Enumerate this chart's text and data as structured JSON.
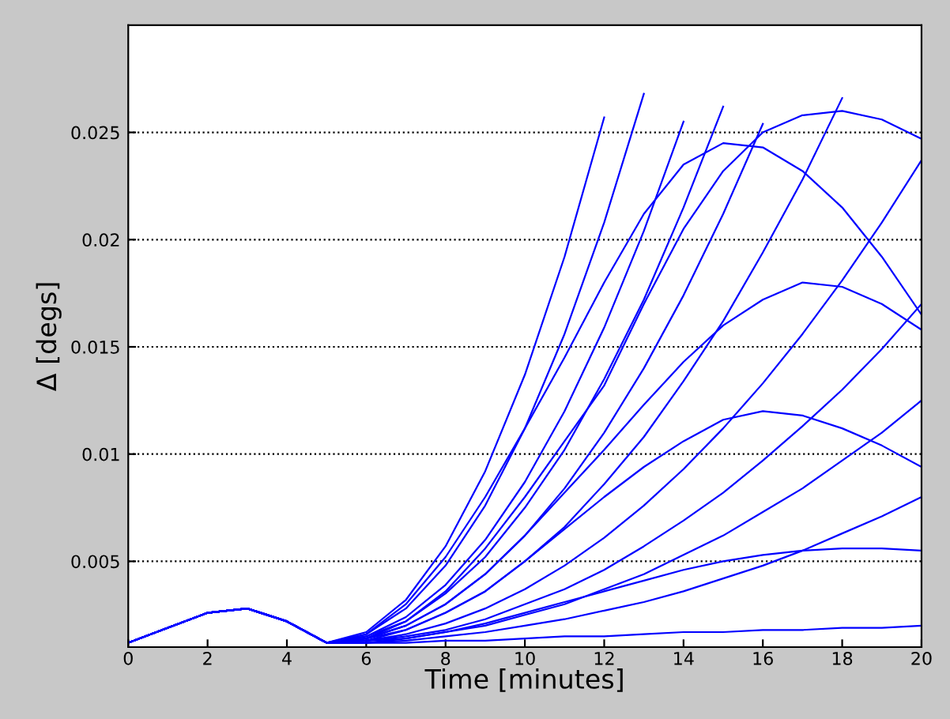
{
  "chart_data": {
    "type": "line",
    "xlabel": "Time [minutes]",
    "ylabel": "Δ [degs]",
    "x": [
      0,
      1,
      2,
      3,
      4,
      5,
      6,
      7,
      8,
      9,
      10,
      11,
      12,
      13,
      14,
      15,
      16,
      17,
      18,
      19,
      20
    ],
    "xlim": [
      0,
      20
    ],
    "xticks": [
      0,
      2,
      4,
      6,
      8,
      10,
      12,
      14,
      16,
      18,
      20
    ],
    "ylim": [
      0.001,
      0.03
    ],
    "yticks": [
      0.005,
      0.01,
      0.015,
      0.02,
      0.025
    ],
    "grid": "y",
    "legend": false,
    "marker": "none",
    "line_style": "solid",
    "series": [
      {
        "color": "#0000ff",
        "values": [
          0.0012,
          0.0019,
          0.0026,
          0.0028,
          0.0022,
          0.0012,
          0.0017,
          0.0032,
          0.0057,
          0.0092,
          0.0137,
          0.0192,
          0.0257,
          null,
          null,
          null,
          null,
          null,
          null,
          null,
          null
        ]
      },
      {
        "color": "#0000ff",
        "values": [
          0.0012,
          0.0019,
          0.0026,
          0.0028,
          0.0022,
          0.0012,
          0.0016,
          0.0028,
          0.0048,
          0.0076,
          0.0112,
          0.0156,
          0.0208,
          0.0268,
          null,
          null,
          null,
          null,
          null,
          null,
          null
        ]
      },
      {
        "color": "#0000ff",
        "values": [
          0.0012,
          0.0019,
          0.0026,
          0.0028,
          0.0022,
          0.0012,
          0.0015,
          0.0024,
          0.0039,
          0.006,
          0.0087,
          0.012,
          0.0159,
          0.0204,
          0.0255,
          null,
          null,
          null,
          null,
          null,
          null
        ]
      },
      {
        "color": "#0000ff",
        "values": [
          0.0012,
          0.0019,
          0.0026,
          0.0028,
          0.0022,
          0.0012,
          0.0015,
          0.0022,
          0.0035,
          0.0052,
          0.0075,
          0.0102,
          0.0135,
          0.0172,
          0.0215,
          0.0262,
          null,
          null,
          null,
          null,
          null
        ]
      },
      {
        "color": "#0000ff",
        "values": [
          0.0012,
          0.0019,
          0.0026,
          0.0028,
          0.0022,
          0.0012,
          0.0014,
          0.002,
          0.003,
          0.0044,
          0.0062,
          0.0084,
          0.011,
          0.014,
          0.0174,
          0.0212,
          0.0254,
          null,
          null,
          null,
          null
        ]
      },
      {
        "color": "#0000ff",
        "values": [
          0.0012,
          0.0019,
          0.0026,
          0.0028,
          0.0022,
          0.0012,
          0.0014,
          0.0018,
          0.0026,
          0.0036,
          0.005,
          0.0066,
          0.0086,
          0.0108,
          0.0134,
          0.0162,
          0.0194,
          0.0228,
          0.0266,
          null,
          null
        ]
      },
      {
        "color": "#0000ff",
        "values": [
          0.0012,
          0.0019,
          0.0026,
          0.0028,
          0.0022,
          0.0012,
          0.0013,
          0.0016,
          0.0021,
          0.0028,
          0.0037,
          0.0048,
          0.0061,
          0.0076,
          0.0093,
          0.0112,
          0.0133,
          0.0156,
          0.0181,
          0.0208,
          0.0237
        ]
      },
      {
        "color": "#0000ff",
        "values": [
          0.0012,
          0.0019,
          0.0026,
          0.0028,
          0.0022,
          0.0012,
          0.0013,
          0.0015,
          0.0018,
          0.0023,
          0.003,
          0.0037,
          0.0046,
          0.0057,
          0.0069,
          0.0082,
          0.0097,
          0.0113,
          0.013,
          0.0149,
          0.017
        ]
      },
      {
        "color": "#0000ff",
        "values": [
          0.0012,
          0.0019,
          0.0026,
          0.0028,
          0.0022,
          0.0012,
          0.0013,
          0.0014,
          0.0017,
          0.002,
          0.0025,
          0.003,
          0.0037,
          0.0044,
          0.0053,
          0.0062,
          0.0073,
          0.0084,
          0.0097,
          0.011,
          0.0125
        ]
      },
      {
        "color": "#0000ff",
        "values": [
          0.0012,
          0.0019,
          0.0026,
          0.0028,
          0.0022,
          0.0012,
          0.0012,
          0.0013,
          0.0015,
          0.0017,
          0.002,
          0.0023,
          0.0027,
          0.0031,
          0.0036,
          0.0042,
          0.0048,
          0.0055,
          0.0063,
          0.0071,
          0.008
        ]
      },
      {
        "color": "#0000ff",
        "values": [
          0.0012,
          0.0019,
          0.0026,
          0.0028,
          0.0022,
          0.0012,
          0.0014,
          0.0022,
          0.0036,
          0.0056,
          0.008,
          0.0106,
          0.0132,
          0.017,
          0.0205,
          0.0232,
          0.025,
          0.0258,
          0.026,
          0.0256,
          0.0247
        ]
      },
      {
        "color": "#0000ff",
        "values": [
          0.0012,
          0.0019,
          0.0026,
          0.0028,
          0.0022,
          0.0012,
          0.0016,
          0.003,
          0.0052,
          0.008,
          0.0112,
          0.0145,
          0.018,
          0.0212,
          0.0235,
          0.0245,
          0.0243,
          0.0232,
          0.0215,
          0.0192,
          0.0165
        ]
      },
      {
        "color": "#0000ff",
        "values": [
          0.0012,
          0.0019,
          0.0026,
          0.0028,
          0.0022,
          0.0012,
          0.0014,
          0.002,
          0.003,
          0.0044,
          0.0062,
          0.0082,
          0.0102,
          0.0123,
          0.0143,
          0.016,
          0.0172,
          0.018,
          0.0178,
          0.017,
          0.0158
        ]
      },
      {
        "color": "#0000ff",
        "values": [
          0.0012,
          0.0019,
          0.0026,
          0.0028,
          0.0022,
          0.0012,
          0.0013,
          0.0018,
          0.0026,
          0.0036,
          0.005,
          0.0065,
          0.008,
          0.0094,
          0.0106,
          0.0116,
          0.012,
          0.0118,
          0.0112,
          0.0104,
          0.0094
        ]
      },
      {
        "color": "#0000ff",
        "values": [
          0.0012,
          0.0019,
          0.0026,
          0.0028,
          0.0022,
          0.0012,
          0.0012,
          0.0014,
          0.0017,
          0.0021,
          0.0026,
          0.0031,
          0.0036,
          0.0041,
          0.0046,
          0.005,
          0.0053,
          0.0055,
          0.0056,
          0.0056,
          0.0055
        ]
      },
      {
        "color": "#0000ff",
        "values": [
          0.0012,
          0.0019,
          0.0026,
          0.0028,
          0.0022,
          0.0012,
          0.0012,
          0.0012,
          0.0013,
          0.0013,
          0.0014,
          0.0015,
          0.0015,
          0.0016,
          0.0017,
          0.0017,
          0.0018,
          0.0018,
          0.0019,
          0.0019,
          0.002
        ]
      }
    ]
  }
}
